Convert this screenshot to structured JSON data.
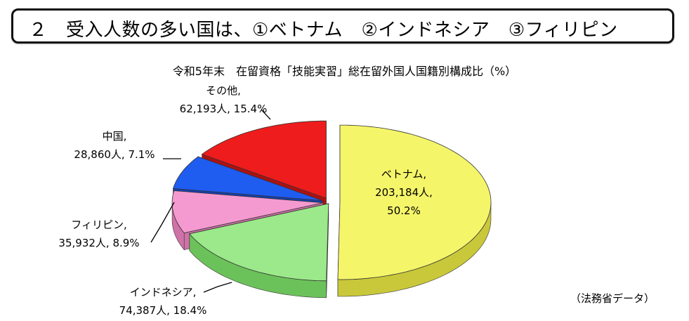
{
  "heading": "２　受入人数の多い国は、①ベトナム　②インドネシア　③フィリピン",
  "source": "（法務省データ）",
  "chart_data": {
    "type": "pie",
    "title": "令和5年末　在留資格「技能実習」総在留外国人国籍別構成比（%）",
    "slices": [
      {
        "name": "ベトナム,",
        "count_label": "203,184人,",
        "pct_label": "50.2%",
        "value": 203184,
        "percent": 50.2,
        "color": "#f5f56a",
        "dark": "#c9c83a"
      },
      {
        "name": "インドネシア,",
        "count_label": "74,387人, 18.4%",
        "value": 74387,
        "percent": 18.4,
        "color": "#9be98a",
        "dark": "#6cc25a"
      },
      {
        "name": "フィリピン,",
        "count_label": "35,932人, 8.9%",
        "value": 35932,
        "percent": 8.9,
        "color": "#f59ad0",
        "dark": "#cf72a8"
      },
      {
        "name": "中国,",
        "count_label": "28,860人, 7.1%",
        "value": 28860,
        "percent": 7.1,
        "color": "#1f5cf0",
        "dark": "#1440b0"
      },
      {
        "name": "その他,",
        "count_label": "62,193人, 15.4%",
        "value": 62193,
        "percent": 15.4,
        "color": "#ee1c1c",
        "dark": "#b01010"
      }
    ]
  }
}
